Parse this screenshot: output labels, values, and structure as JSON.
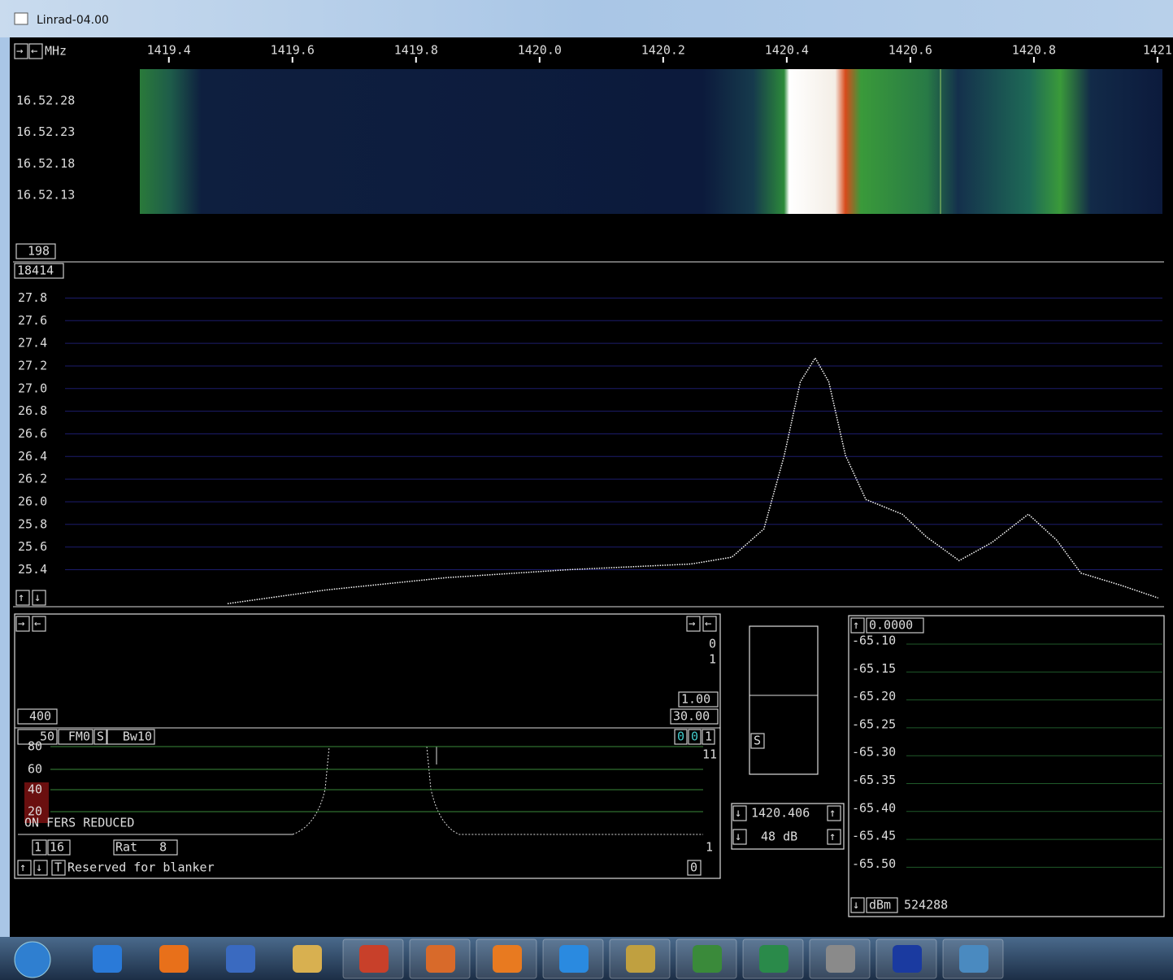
{
  "window": {
    "title": "Linrad-04.00"
  },
  "waterfall": {
    "unit": "MHz",
    "times": [
      "16.52.28",
      "16.52.23",
      "16.52.18",
      "16.52.13"
    ],
    "averaging": "198"
  },
  "spectrum_box": "18414",
  "chart_data": {
    "type": "line",
    "color": "#ffffff",
    "grid": true,
    "x": [
      1419.495,
      1419.653,
      1419.85,
      1420.047,
      1420.245,
      1420.311,
      1420.363,
      1420.396,
      1420.422,
      1420.446,
      1420.468,
      1420.495,
      1420.528,
      1420.587,
      1420.626,
      1420.679,
      1420.732,
      1420.791,
      1420.837,
      1420.876,
      1420.942,
      1421.001
    ],
    "values": [
      25.1,
      25.22,
      25.33,
      25.4,
      25.45,
      25.51,
      25.76,
      26.41,
      27.06,
      27.27,
      27.06,
      26.41,
      26.02,
      25.89,
      25.69,
      25.48,
      25.64,
      25.89,
      25.66,
      25.37,
      25.26,
      25.15
    ],
    "xlim": [
      1419.153,
      1421.008
    ],
    "xticks": [
      1419.4,
      1419.6,
      1419.8,
      {
        "value": 1420,
        "label": "1420.0"
      },
      1420.2,
      1420.4,
      1420.6,
      1420.8,
      1421
    ],
    "ylim": [
      25.08,
      27.99
    ],
    "yticks": [
      27.8,
      27.6,
      27.4,
      27.2,
      {
        "value": 27,
        "label": "27.0"
      },
      26.8,
      26.6,
      26.4,
      26.2,
      {
        "value": 26,
        "label": "26.0"
      },
      25.8,
      25.6,
      25.4
    ]
  },
  "baseband": {
    "top_right": [
      "0",
      "1"
    ],
    "gain": "1.00",
    "range": "30.00",
    "width": "400",
    "buttons": [
      "50",
      "FM0",
      "S",
      "Bw10"
    ],
    "right_boxes": [
      "0",
      "0",
      "1"
    ],
    "side": "11",
    "scale": [
      "80",
      "60",
      "40",
      "20"
    ],
    "status": "ON FERS REDUCED",
    "row": [
      "1",
      "16",
      "Rat   8"
    ],
    "right_one": "1",
    "blanker_key": "T",
    "blanker": "Reserved for blanker",
    "blanker_value": "0"
  },
  "s_meter": {
    "label": "S",
    "frequency": "1420.406",
    "gain": "48 dB"
  },
  "power": {
    "value": "0.0000",
    "scale": [
      "-65.10",
      "-65.15",
      "-65.20",
      "-65.25",
      "-65.30",
      "-65.35",
      "-65.40",
      "-65.45",
      "-65.50"
    ],
    "unit": "dBm",
    "points": "524288"
  }
}
